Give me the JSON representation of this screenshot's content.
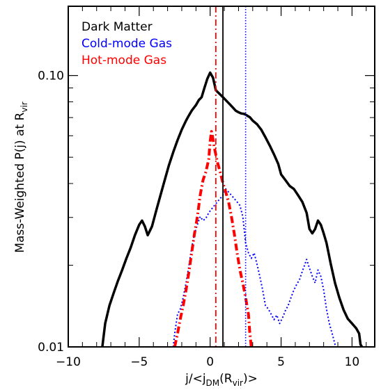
{
  "chart_data": {
    "type": "line",
    "title": "",
    "xlabel": "j/<j_DM(R_vir)>",
    "xlabel_parts": {
      "main": "j/<j",
      "sub1": "DM",
      "mid": "(R",
      "sub2": "vir",
      "end": ")>"
    },
    "ylabel": "Mass-Weighted P(j) at R_vir",
    "ylabel_parts": {
      "main": "Mass-Weighted P(j) at R",
      "sub": "vir"
    },
    "xlim": [
      -10,
      11.6
    ],
    "ylim": [
      0.01,
      0.18
    ],
    "yscale": "log",
    "grid": false,
    "legend_position": "top-left",
    "x_ticks": [
      {
        "value": -10,
        "label": "−10"
      },
      {
        "value": -5,
        "label": "−5"
      },
      {
        "value": 0,
        "label": "0"
      },
      {
        "value": 5,
        "label": "5"
      },
      {
        "value": 10,
        "label": "10"
      }
    ],
    "y_ticks": [
      {
        "value": 0.01,
        "label": "0.01"
      },
      {
        "value": 0.1,
        "label": "0.10"
      }
    ],
    "series": [
      {
        "name": "Dark Matter",
        "color": "#000000",
        "style": "solid",
        "points": [
          [
            -7.6,
            0.0096
          ],
          [
            -7.4,
            0.0122
          ],
          [
            -7.1,
            0.0142
          ],
          [
            -6.8,
            0.0158
          ],
          [
            -6.5,
            0.0175
          ],
          [
            -6.2,
            0.0192
          ],
          [
            -5.9,
            0.0212
          ],
          [
            -5.6,
            0.0232
          ],
          [
            -5.3,
            0.0258
          ],
          [
            -5.0,
            0.0282
          ],
          [
            -4.8,
            0.0292
          ],
          [
            -4.6,
            0.0278
          ],
          [
            -4.4,
            0.0258
          ],
          [
            -4.1,
            0.0278
          ],
          [
            -3.8,
            0.0318
          ],
          [
            -3.5,
            0.0362
          ],
          [
            -3.2,
            0.0412
          ],
          [
            -2.9,
            0.0468
          ],
          [
            -2.6,
            0.0522
          ],
          [
            -2.3,
            0.0578
          ],
          [
            -2.0,
            0.0632
          ],
          [
            -1.7,
            0.0682
          ],
          [
            -1.5,
            0.0712
          ],
          [
            -1.3,
            0.0742
          ],
          [
            -1.0,
            0.0778
          ],
          [
            -0.8,
            0.0812
          ],
          [
            -0.6,
            0.0832
          ],
          [
            -0.4,
            0.0902
          ],
          [
            -0.2,
            0.0972
          ],
          [
            0.0,
            0.1025
          ],
          [
            0.2,
            0.0982
          ],
          [
            0.4,
            0.0882
          ],
          [
            0.6,
            0.0862
          ],
          [
            0.8,
            0.0842
          ],
          [
            1.0,
            0.0822
          ],
          [
            1.2,
            0.0802
          ],
          [
            1.4,
            0.0782
          ],
          [
            1.6,
            0.0762
          ],
          [
            1.8,
            0.0742
          ],
          [
            2.0,
            0.0732
          ],
          [
            2.2,
            0.0725
          ],
          [
            2.4,
            0.0722
          ],
          [
            2.6,
            0.0712
          ],
          [
            2.8,
            0.0702
          ],
          [
            3.0,
            0.0682
          ],
          [
            3.3,
            0.0662
          ],
          [
            3.6,
            0.0632
          ],
          [
            3.9,
            0.0592
          ],
          [
            4.2,
            0.0552
          ],
          [
            4.5,
            0.0512
          ],
          [
            4.8,
            0.0472
          ],
          [
            5.0,
            0.0432
          ],
          [
            5.3,
            0.0412
          ],
          [
            5.6,
            0.0392
          ],
          [
            5.9,
            0.0382
          ],
          [
            6.2,
            0.0362
          ],
          [
            6.5,
            0.0342
          ],
          [
            6.8,
            0.0312
          ],
          [
            7.0,
            0.0272
          ],
          [
            7.2,
            0.0262
          ],
          [
            7.4,
            0.0272
          ],
          [
            7.6,
            0.0292
          ],
          [
            7.8,
            0.0282
          ],
          [
            8.0,
            0.0262
          ],
          [
            8.2,
            0.0242
          ],
          [
            8.5,
            0.0202
          ],
          [
            8.8,
            0.0172
          ],
          [
            9.1,
            0.0152
          ],
          [
            9.4,
            0.0137
          ],
          [
            9.7,
            0.0127
          ],
          [
            10.0,
            0.0122
          ],
          [
            10.3,
            0.0117
          ],
          [
            10.5,
            0.0112
          ],
          [
            10.6,
            0.0102
          ],
          [
            10.7,
            0.0096
          ]
        ]
      },
      {
        "name": "Cold-mode Gas",
        "color": "#0000ff",
        "style": "dotted",
        "points": [
          [
            -2.6,
            0.0098
          ],
          [
            -2.5,
            0.0112
          ],
          [
            -2.3,
            0.0132
          ],
          [
            -2.1,
            0.0138
          ],
          [
            -1.9,
            0.0152
          ],
          [
            -1.7,
            0.0172
          ],
          [
            -1.5,
            0.0198
          ],
          [
            -1.3,
            0.0232
          ],
          [
            -1.1,
            0.0262
          ],
          [
            -0.9,
            0.0282
          ],
          [
            -0.7,
            0.0302
          ],
          [
            -0.5,
            0.0292
          ],
          [
            -0.3,
            0.0298
          ],
          [
            -0.1,
            0.0312
          ],
          [
            0.1,
            0.0322
          ],
          [
            0.3,
            0.0332
          ],
          [
            0.5,
            0.0342
          ],
          [
            0.7,
            0.0352
          ],
          [
            0.9,
            0.0362
          ],
          [
            1.1,
            0.0382
          ],
          [
            1.3,
            0.0372
          ],
          [
            1.5,
            0.0362
          ],
          [
            1.7,
            0.0352
          ],
          [
            1.9,
            0.0342
          ],
          [
            2.1,
            0.0332
          ],
          [
            2.3,
            0.0302
          ],
          [
            2.5,
            0.0242
          ],
          [
            2.7,
            0.0222
          ],
          [
            2.9,
            0.0212
          ],
          [
            3.1,
            0.0222
          ],
          [
            3.3,
            0.0202
          ],
          [
            3.5,
            0.0182
          ],
          [
            3.7,
            0.0162
          ],
          [
            3.9,
            0.0142
          ],
          [
            4.1,
            0.0138
          ],
          [
            4.3,
            0.0132
          ],
          [
            4.5,
            0.0126
          ],
          [
            4.7,
            0.0131
          ],
          [
            4.9,
            0.0122
          ],
          [
            5.1,
            0.0128
          ],
          [
            5.3,
            0.0136
          ],
          [
            5.5,
            0.0142
          ],
          [
            5.7,
            0.0152
          ],
          [
            5.9,
            0.0162
          ],
          [
            6.1,
            0.017
          ],
          [
            6.3,
            0.0177
          ],
          [
            6.5,
            0.019
          ],
          [
            6.8,
            0.021
          ],
          [
            7.0,
            0.0195
          ],
          [
            7.2,
            0.0182
          ],
          [
            7.4,
            0.0172
          ],
          [
            7.6,
            0.0192
          ],
          [
            7.8,
            0.0182
          ],
          [
            8.0,
            0.0162
          ],
          [
            8.2,
            0.0138
          ],
          [
            8.4,
            0.0122
          ],
          [
            8.6,
            0.0112
          ],
          [
            8.8,
            0.0102
          ],
          [
            8.9,
            0.0097
          ]
        ]
      },
      {
        "name": "Hot-mode Gas",
        "color": "#ff0000",
        "style": "dash-dot",
        "points": [
          [
            -2.5,
            0.0098
          ],
          [
            -2.3,
            0.0112
          ],
          [
            -2.1,
            0.0127
          ],
          [
            -1.9,
            0.0142
          ],
          [
            -1.7,
            0.0162
          ],
          [
            -1.5,
            0.0188
          ],
          [
            -1.3,
            0.0222
          ],
          [
            -1.1,
            0.0262
          ],
          [
            -0.9,
            0.0302
          ],
          [
            -0.7,
            0.0362
          ],
          [
            -0.5,
            0.0412
          ],
          [
            -0.3,
            0.0442
          ],
          [
            -0.1,
            0.0492
          ],
          [
            0.0,
            0.0572
          ],
          [
            0.1,
            0.0622
          ],
          [
            0.2,
            0.0582
          ],
          [
            0.3,
            0.0542
          ],
          [
            0.5,
            0.0482
          ],
          [
            0.7,
            0.0442
          ],
          [
            0.9,
            0.0402
          ],
          [
            1.1,
            0.0372
          ],
          [
            1.3,
            0.0342
          ],
          [
            1.5,
            0.0302
          ],
          [
            1.7,
            0.0262
          ],
          [
            1.9,
            0.0222
          ],
          [
            2.1,
            0.0192
          ],
          [
            2.3,
            0.0172
          ],
          [
            2.5,
            0.0152
          ],
          [
            2.7,
            0.0132
          ],
          [
            2.8,
            0.0112
          ],
          [
            2.9,
            0.0097
          ]
        ]
      }
    ],
    "vertical_lines": [
      {
        "x": 0.9,
        "color": "#000000",
        "style": "solid"
      },
      {
        "x": 2.5,
        "color": "#0000ff",
        "style": "dotted"
      },
      {
        "x": 0.4,
        "color": "#ff0000",
        "style": "dash-dot"
      }
    ]
  }
}
